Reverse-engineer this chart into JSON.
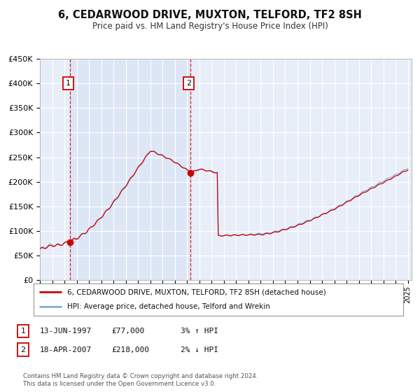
{
  "title": "6, CEDARWOOD DRIVE, MUXTON, TELFORD, TF2 8SH",
  "subtitle": "Price paid vs. HM Land Registry's House Price Index (HPI)",
  "background_color": "#ffffff",
  "plot_background_color": "#e8eef8",
  "grid_color": "#ffffff",
  "red_line_color": "#cc0000",
  "blue_line_color": "#88aadd",
  "sale1_year": 1997.46,
  "sale1_price": 77000,
  "sale2_year": 2007.29,
  "sale2_price": 218000,
  "legend_entry1": "6, CEDARWOOD DRIVE, MUXTON, TELFORD, TF2 8SH (detached house)",
  "legend_entry2": "HPI: Average price, detached house, Telford and Wrekin",
  "table_row1": [
    "1",
    "13-JUN-1997",
    "£77,000",
    "3% ↑ HPI"
  ],
  "table_row2": [
    "2",
    "18-APR-2007",
    "£218,000",
    "2% ↓ HPI"
  ],
  "footer": "Contains HM Land Registry data © Crown copyright and database right 2024.\nThis data is licensed under the Open Government Licence v3.0.",
  "xmin": 1995.0,
  "xmax": 2025.3,
  "ymin": 0,
  "ymax": 450000,
  "shaded_region_color": "#dde6f5"
}
